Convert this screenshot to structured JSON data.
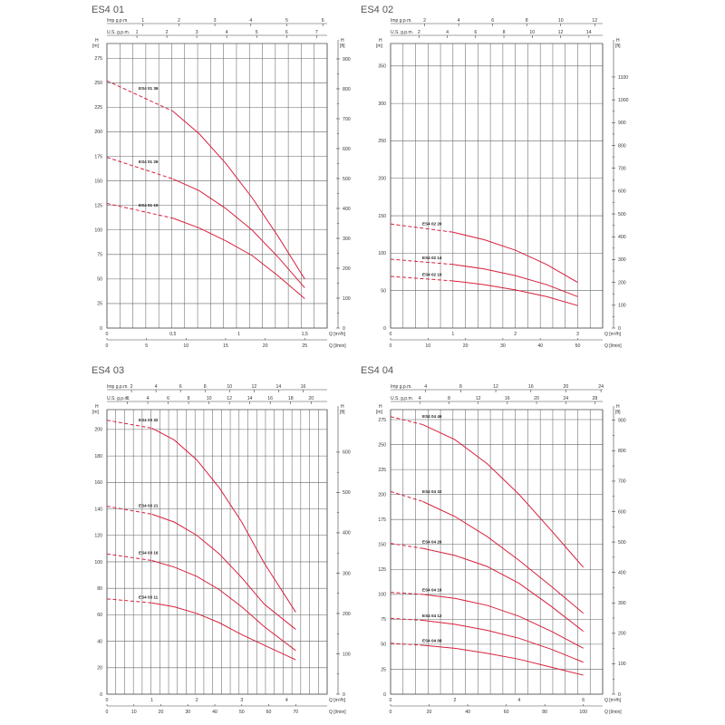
{
  "chart_data": [
    {
      "type": "line",
      "title": "ES4 01",
      "h_unit": "H\n[m]",
      "h_ft_unit": "H\n[ft]",
      "q_unit": "Q [m³/h]",
      "ql_unit": "Q [l/min]",
      "imp_label": "Imp g.p.m.",
      "us_label": "U.S. g.p.m.",
      "xlim": [
        0,
        1.67
      ],
      "ylim": [
        0,
        290
      ],
      "y_ticks": [
        0,
        25,
        50,
        75,
        100,
        125,
        150,
        175,
        200,
        225,
        250,
        275
      ],
      "ft_ticks": [
        0,
        100,
        200,
        300,
        400,
        500,
        600,
        700,
        800,
        900
      ],
      "m3h_ticks": [
        0,
        0.5,
        1,
        1.5
      ],
      "m3h_labels": [
        "0",
        "0,5",
        "1",
        "1,5"
      ],
      "lmin_ticks": [
        0,
        5,
        10,
        15,
        20,
        25
      ],
      "imp_ticks": [
        1,
        2,
        3,
        4,
        5,
        6
      ],
      "us_ticks": [
        1,
        2,
        3,
        4,
        5,
        6,
        7
      ],
      "series": [
        {
          "name": "ES4 01 36",
          "x": [
            0,
            0.5,
            0.7,
            0.9,
            1.1,
            1.3,
            1.5
          ],
          "y": [
            252,
            221,
            198,
            168,
            133,
            93,
            50
          ]
        },
        {
          "name": "ES4 01 26",
          "x": [
            0,
            0.5,
            0.7,
            0.9,
            1.1,
            1.3,
            1.5
          ],
          "y": [
            174,
            152,
            140,
            122,
            100,
            72,
            41
          ]
        },
        {
          "name": "ES4 01 19",
          "x": [
            0,
            0.5,
            0.7,
            0.9,
            1.1,
            1.3,
            1.5
          ],
          "y": [
            127,
            112,
            102,
            89,
            74,
            53,
            30
          ]
        }
      ]
    },
    {
      "type": "line",
      "title": "ES4 02",
      "h_unit": "H\n[m]",
      "h_ft_unit": "H\n[ft]",
      "q_unit": "Q [m³/h]",
      "ql_unit": "Q [l/min]",
      "imp_label": "Imp g.p.m.",
      "us_label": "U.S. g.p.m.",
      "xlim": [
        0,
        3.4
      ],
      "ylim": [
        0,
        380
      ],
      "y_ticks": [
        0,
        50,
        100,
        150,
        200,
        250,
        300,
        350
      ],
      "ft_ticks": [
        0,
        100,
        200,
        300,
        400,
        500,
        600,
        700,
        800,
        900,
        1000,
        1100
      ],
      "m3h_ticks": [
        0,
        1,
        2,
        3
      ],
      "m3h_labels": [
        "0",
        "1",
        "2",
        "3"
      ],
      "lmin_ticks": [
        0,
        10,
        20,
        30,
        40,
        50
      ],
      "imp_ticks": [
        2,
        4,
        6,
        8,
        10,
        12
      ],
      "us_ticks": [
        2,
        4,
        6,
        8,
        10,
        12,
        14
      ],
      "series": [
        {
          "name": "ES4 02 20",
          "x": [
            0,
            1,
            1.5,
            2,
            2.5,
            3
          ],
          "y": [
            139,
            128,
            118,
            104,
            85,
            61
          ]
        },
        {
          "name": "ES4 02 14",
          "x": [
            0,
            1,
            1.5,
            2,
            2.5,
            3
          ],
          "y": [
            92,
            85,
            79,
            70,
            58,
            42
          ]
        },
        {
          "name": "ES4 02 10",
          "x": [
            0,
            1,
            1.5,
            2,
            2.5,
            3
          ],
          "y": [
            69,
            63,
            58,
            51,
            42,
            30
          ]
        }
      ]
    },
    {
      "type": "line",
      "title": "ES4 03",
      "h_unit": "H\n[m]",
      "h_ft_unit": "H\n[ft]",
      "q_unit": "Q [m³/h]",
      "ql_unit": "Q [l/min]",
      "imp_label": "Imp g.p.m.",
      "us_label": "U.S. g.p.m.",
      "xlim": [
        0,
        4.9
      ],
      "ylim": [
        0,
        215
      ],
      "y_ticks": [
        0,
        20,
        40,
        60,
        80,
        100,
        120,
        140,
        160,
        180,
        200
      ],
      "ft_ticks": [
        0,
        100,
        200,
        300,
        400,
        500,
        600
      ],
      "m3h_ticks": [
        0,
        1,
        2,
        3,
        4
      ],
      "m3h_labels": [
        "0",
        "1",
        "2",
        "3",
        "4"
      ],
      "lmin_ticks": [
        0,
        10,
        20,
        30,
        40,
        50,
        60,
        70
      ],
      "imp_ticks": [
        2,
        4,
        6,
        8,
        10,
        12,
        14,
        16
      ],
      "us_ticks": [
        2,
        4,
        6,
        8,
        10,
        12,
        14,
        16,
        18,
        20
      ],
      "series": [
        {
          "name": "ES4 03 32",
          "x": [
            0,
            1,
            1.5,
            2,
            2.5,
            3,
            3.5,
            4.2
          ],
          "y": [
            207,
            201,
            192,
            177,
            156,
            130,
            99,
            62
          ]
        },
        {
          "name": "ES4 03 21",
          "x": [
            0,
            1,
            1.5,
            2,
            2.5,
            3,
            3.5,
            4.2
          ],
          "y": [
            142,
            136,
            130,
            120,
            106,
            88,
            68,
            49
          ]
        },
        {
          "name": "ES4 03 16",
          "x": [
            0,
            1,
            1.5,
            2,
            2.5,
            3,
            3.5,
            4.2
          ],
          "y": [
            106,
            101,
            96,
            89,
            79,
            66,
            51,
            33
          ]
        },
        {
          "name": "ES4 03 11",
          "x": [
            0,
            1,
            1.5,
            2,
            2.5,
            3,
            3.5,
            4.2
          ],
          "y": [
            72,
            69,
            66,
            61,
            54,
            45,
            37,
            26
          ]
        }
      ]
    },
    {
      "type": "line",
      "title": "ES4 04",
      "h_unit": "H\n[m]",
      "h_ft_unit": "H\n[ft]",
      "q_unit": "Q [m³/h]",
      "ql_unit": "Q [l/min]",
      "imp_label": "Imp g.p.m.",
      "us_label": "U.S. g.p.m.",
      "xlim": [
        0,
        6.6
      ],
      "ylim": [
        0,
        285
      ],
      "y_ticks": [
        0,
        25,
        50,
        75,
        100,
        125,
        150,
        175,
        200,
        225,
        250,
        275
      ],
      "ft_ticks": [
        0,
        100,
        200,
        300,
        400,
        500,
        600,
        700,
        800,
        900
      ],
      "m3h_ticks": [
        0,
        2,
        4,
        6
      ],
      "m3h_labels": [
        "0",
        "2",
        "4",
        "6"
      ],
      "lmin_ticks": [
        0,
        20,
        40,
        60,
        80,
        100
      ],
      "imp_ticks": [
        4,
        8,
        12,
        16,
        20,
        24
      ],
      "us_ticks": [
        4,
        8,
        12,
        16,
        20,
        24,
        28
      ],
      "series": [
        {
          "name": "ES4 04 46",
          "x": [
            0,
            1,
            2,
            3,
            4,
            5,
            6
          ],
          "y": [
            278,
            270,
            255,
            231,
            200,
            164,
            127
          ]
        },
        {
          "name": "ES4 04 32",
          "x": [
            0,
            1,
            2,
            3,
            4,
            5,
            6
          ],
          "y": [
            203,
            193,
            178,
            158,
            134,
            108,
            81
          ]
        },
        {
          "name": "ES4 04 26",
          "x": [
            0,
            1,
            2,
            3,
            4,
            5,
            6
          ],
          "y": [
            151,
            146,
            139,
            128,
            111,
            88,
            63
          ]
        },
        {
          "name": "ES4 04 16",
          "x": [
            0,
            1,
            2,
            3,
            4,
            5,
            6
          ],
          "y": [
            102,
            100,
            96,
            89,
            78,
            63,
            46
          ]
        },
        {
          "name": "ES4 04 12",
          "x": [
            0,
            1,
            2,
            3,
            4,
            5,
            6
          ],
          "y": [
            76,
            74,
            70,
            64,
            56,
            45,
            32
          ]
        },
        {
          "name": "ES4 04 08",
          "x": [
            0,
            1,
            2,
            3,
            4,
            5,
            6
          ],
          "y": [
            51,
            49,
            46,
            41,
            35,
            27,
            19
          ]
        }
      ]
    }
  ]
}
